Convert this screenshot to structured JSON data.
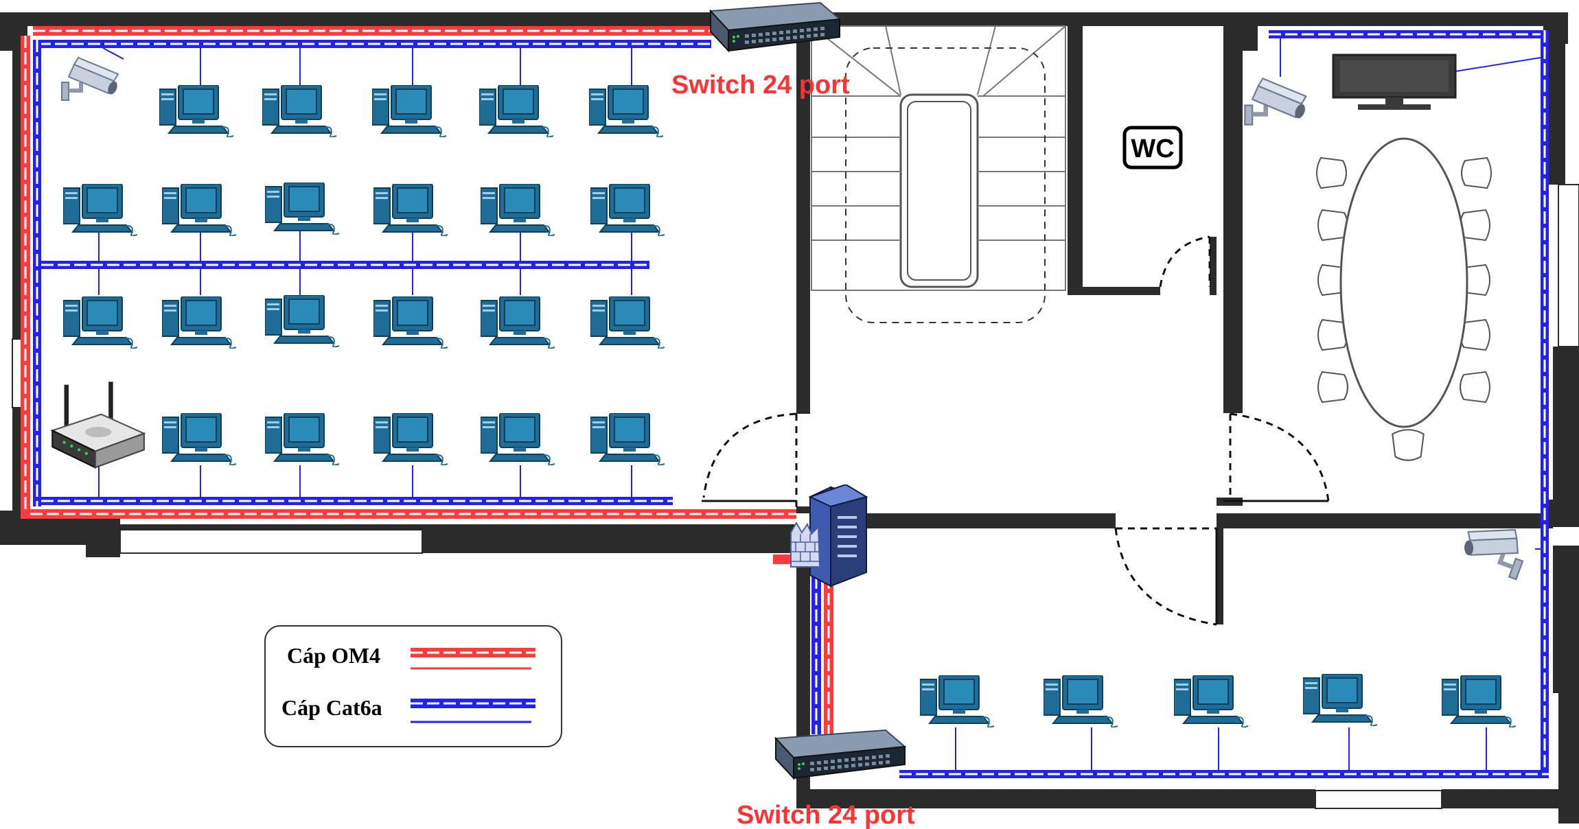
{
  "labels": {
    "switch_top": "Switch 24 port",
    "switch_bottom": "Switch 24 port",
    "wc": "WC"
  },
  "legend": {
    "om4": "Cáp OM4",
    "cat6a": "Cáp Cat6a"
  },
  "colors": {
    "om4": "#ff3b3b",
    "cat6a": "#2222ee",
    "wall": "#2b2b2b",
    "pc": "#1f6d96"
  },
  "icons": [
    "desktop-pc-icon",
    "network-switch-icon",
    "cctv-camera-icon",
    "wifi-router-icon",
    "firewall-server-icon",
    "tv-monitor-icon",
    "conference-table-icon",
    "staircase-icon"
  ]
}
